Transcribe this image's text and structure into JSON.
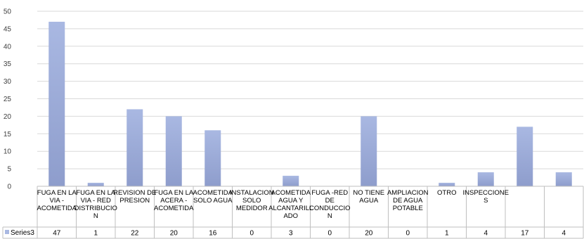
{
  "chart_data": {
    "type": "bar",
    "categories": [
      [
        "FUGA EN LA",
        "VIA -",
        "ACOMETIDA"
      ],
      [
        "FUGA EN LA",
        "VIA - RED",
        "DISTRIBUCIO",
        "N"
      ],
      [
        "REVISION DE",
        "PRESION"
      ],
      [
        "FUGA EN LA",
        "ACERA -",
        "ACOMETIDA"
      ],
      [
        "ACOMETIDA",
        "SOLO AGUA"
      ],
      [
        "INSTALACION",
        "SOLO",
        "MEDIDOR"
      ],
      [
        "ACOMETIDA",
        "AGUA Y",
        "ALCANTARILL",
        "ADO"
      ],
      [
        "FUGA -RED",
        "DE",
        "CONDUCCIO",
        "N"
      ],
      [
        "NO TIENE",
        "AGUA"
      ],
      [
        "AMPLIACION",
        "DE AGUA",
        "POTABLE"
      ],
      [
        "OTRO"
      ],
      [
        "INSPECCIONE",
        "S"
      ],
      [
        ""
      ],
      [
        ""
      ]
    ],
    "series": [
      {
        "name": "Series3",
        "values": [
          47,
          1,
          22,
          20,
          16,
          0,
          3,
          0,
          20,
          0,
          1,
          4,
          17,
          4
        ],
        "color_top": "#a9b8e2",
        "color_bottom": "#8e9dcc"
      }
    ],
    "ylim": [
      0,
      50
    ],
    "yticks": [
      0,
      5,
      10,
      15,
      20,
      25,
      30,
      35,
      40,
      45,
      50
    ],
    "grid": true,
    "legend": "data-table-left"
  }
}
